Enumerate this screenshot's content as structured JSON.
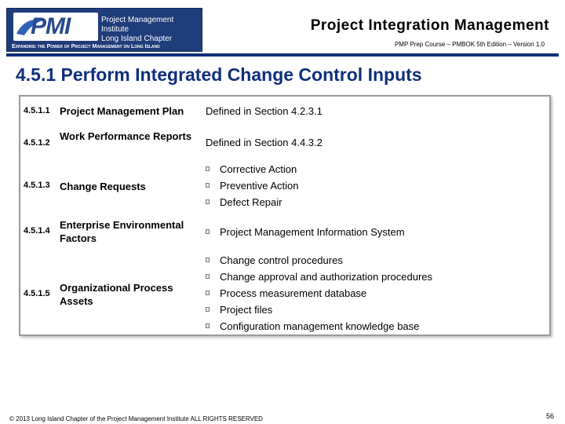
{
  "header": {
    "logo": {
      "letters": "PMI",
      "org_line1": "Project Management Institute",
      "org_line2": "Long Island Chapter",
      "tagline": "Expanding the Power of Project Management on Long Island"
    },
    "title": "Project Integration Management",
    "subtitle": "PMP Prep Course – PMBOK 5th Edition – Version 1.0",
    "accent_color": "#0d2f79"
  },
  "slide_title": "4.5.1 Perform Integrated Change Control Inputs",
  "rows": [
    {
      "number": "4.5.1.1",
      "name": "Project Management Plan",
      "value": "Defined in Section 4.2.3.1"
    },
    {
      "number": "4.5.1.2",
      "name": "Work Performance Reports",
      "value": "Defined in Section 4.4.3.2"
    },
    {
      "number": "4.5.1.3",
      "name": "Change Requests",
      "bullets": [
        "Corrective Action",
        "Preventive Action",
        "Defect Repair"
      ]
    },
    {
      "number": "4.5.1.4",
      "name": "Enterprise Environmental Factors",
      "bullets": [
        "Project Management Information System"
      ]
    },
    {
      "number": "4.5.1.5",
      "name": "Organizational Process Assets",
      "bullets": [
        "Change control procedures",
        "Change approval and authorization procedures",
        "Process measurement database",
        "Project files",
        "Configuration management knowledge base"
      ]
    }
  ],
  "footer": {
    "copyright": "© 2013 Long Island Chapter of the Project Management Institute ALL RIGHTS RESERVED",
    "page_number": "56"
  }
}
